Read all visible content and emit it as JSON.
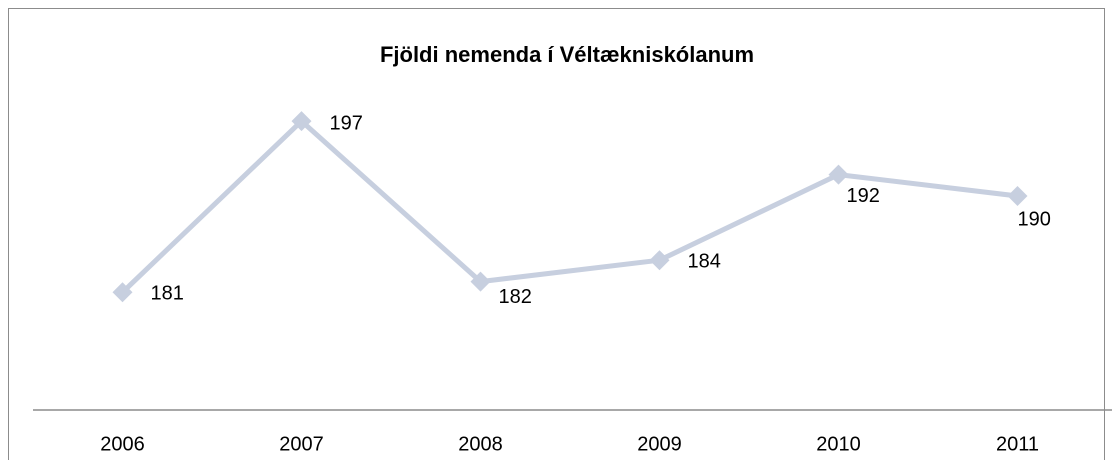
{
  "chart_data": {
    "type": "line",
    "title": "Fjöldi nemenda í Véltækniskólanum",
    "categories": [
      "2006",
      "2007",
      "2008",
      "2009",
      "2010",
      "2011"
    ],
    "series": [
      {
        "color": "#c7cfdf",
        "values": [
          181,
          197,
          182,
          184,
          192,
          190
        ]
      }
    ],
    "ylim": [
      170,
      200
    ],
    "grid": false
  }
}
